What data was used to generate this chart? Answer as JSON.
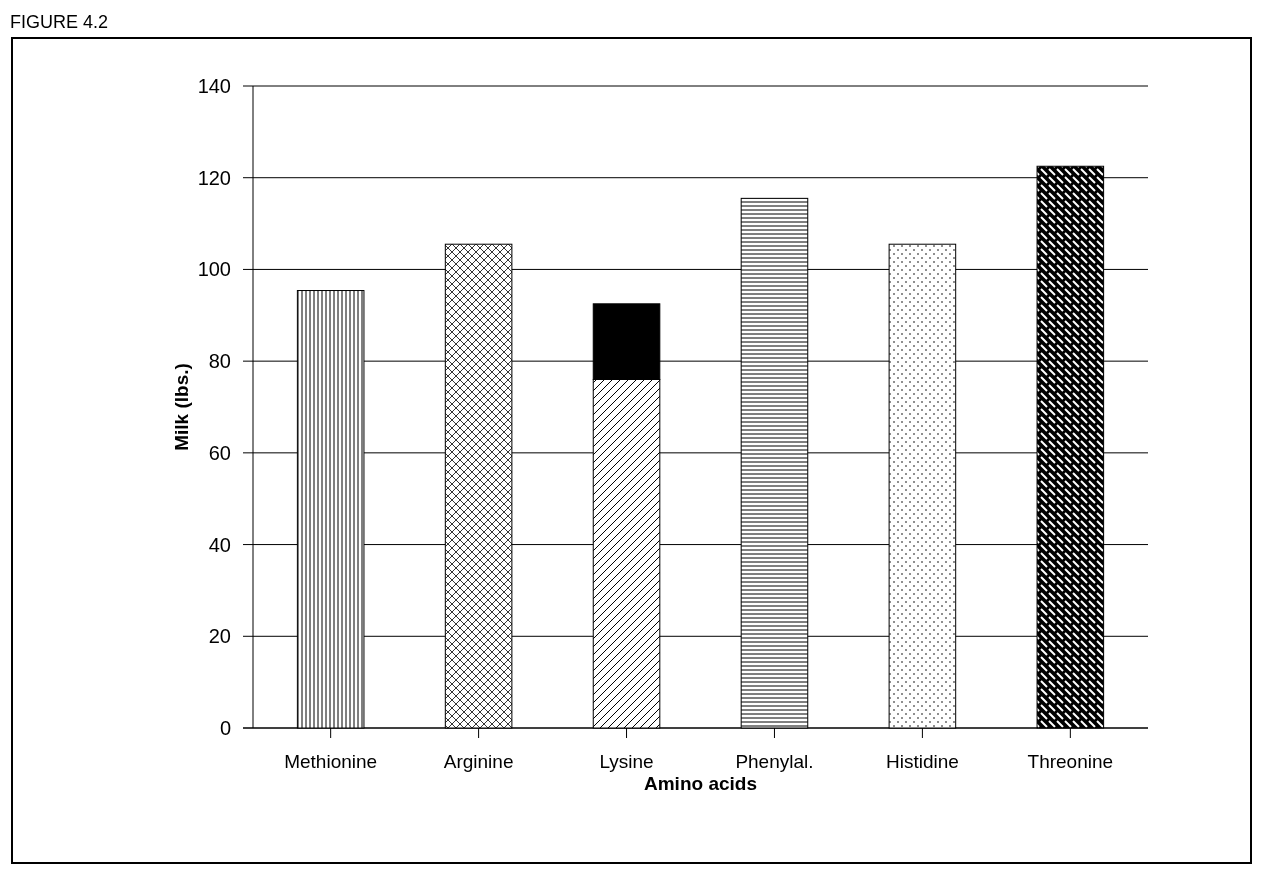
{
  "chart_data": {
    "type": "bar",
    "title": "FIGURE 4.2",
    "xlabel": "Amino acids",
    "ylabel": "Milk (lbs.)",
    "categories": [
      "Methionine",
      "Arginine",
      "Lysine",
      "Phenylal.",
      "Histidine",
      "Threonine"
    ],
    "stacked": true,
    "series": [
      {
        "color": "#000000",
        "values": [
          95.4,
          105.5,
          76,
          115.5,
          105.5,
          122.5
        ]
      },
      {
        "color": "#000000",
        "values": [
          null,
          null,
          16.5,
          null,
          null,
          null
        ]
      }
    ],
    "ylim": [
      0,
      140
    ],
    "yticks": [
      0,
      20,
      40,
      60,
      80,
      100,
      120,
      140
    ],
    "grid": "y"
  }
}
